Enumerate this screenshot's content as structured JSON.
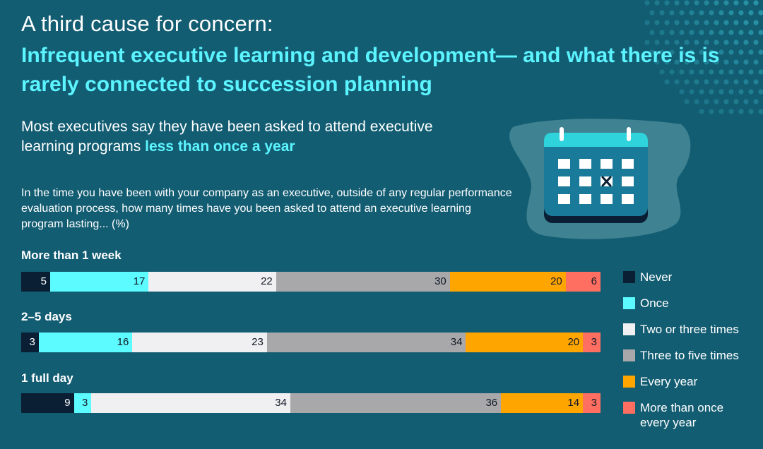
{
  "header": {
    "title": "A third cause for concern:",
    "headline": "Infrequent executive learning and development— and what there is is rarely connected to succession planning"
  },
  "subtitle": {
    "text": "Most executives say they have been asked to attend executive learning programs",
    "highlight": "less than once a year"
  },
  "question": "In the time you have been with your company as an executive, outside of any regular performance evaluation process, how many times have you been asked to attend an executive learning program lasting... (%)",
  "icons": {
    "decorative_dots": "dot-pattern",
    "calendar": "calendar-icon"
  },
  "colors": {
    "background": "#135d73",
    "accent": "#5cf5ff",
    "calendar_top": "#2ed3dc",
    "calendar_body": "#1a7a99"
  },
  "chart_data": {
    "type": "bar",
    "orientation": "horizontal",
    "stacked": true,
    "unit": "%",
    "categories": [
      "More than 1 week",
      "2–5 days",
      "1 full day"
    ],
    "series": [
      {
        "name": "Never",
        "color": "#0a1f33",
        "values": [
          5,
          3,
          9
        ]
      },
      {
        "name": "Once",
        "color": "#5cfbff",
        "values": [
          17,
          16,
          3
        ]
      },
      {
        "name": "Two or three times",
        "color": "#f0f0f2",
        "values": [
          22,
          23,
          34
        ]
      },
      {
        "name": "Three to five times",
        "color": "#a8a8aa",
        "values": [
          30,
          34,
          36
        ]
      },
      {
        "name": "Every year",
        "color": "#ffa500",
        "values": [
          20,
          20,
          14
        ]
      },
      {
        "name": "More than once every year",
        "color": "#ff6f61",
        "values": [
          6,
          3,
          3
        ]
      }
    ],
    "legend_position": "right"
  }
}
